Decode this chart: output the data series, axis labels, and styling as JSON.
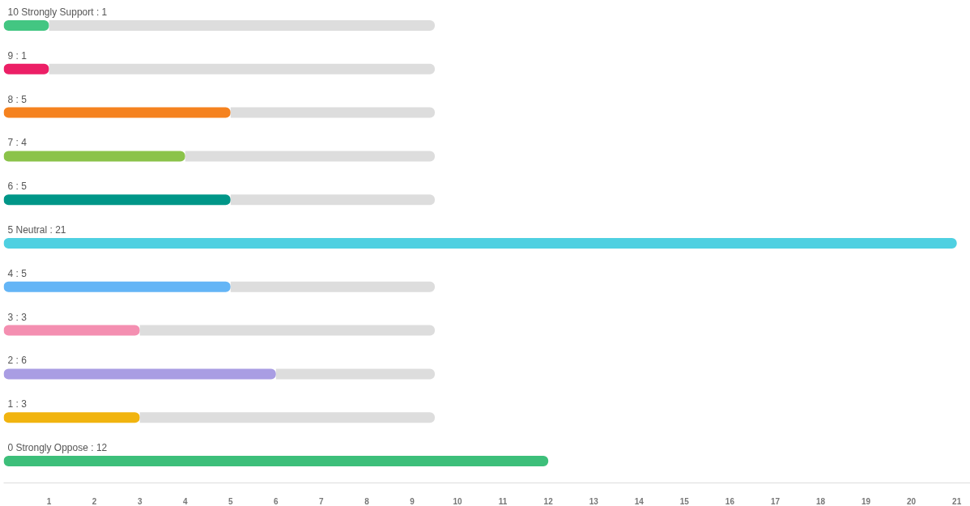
{
  "chart_data": {
    "type": "bar",
    "orientation": "horizontal",
    "stacked": true,
    "categories": [
      "10 Strongly Support : 1",
      "9 : 1",
      "8 : 5",
      "7 : 4",
      "6 : 5",
      "5 Neutral : 21",
      "4 : 5",
      "3 : 3",
      "2 : 6",
      "1 : 3",
      "0 Strongly Oppose : 12"
    ],
    "series": [
      {
        "colors": [
          "#43c682",
          "#ec1f66",
          "#f5821f",
          "#8bc34a",
          "#009688",
          "#4fd0e1",
          "#64b5f6",
          "#f48fb1",
          "#a99de3",
          "#f1b40f",
          "#3dbf7a"
        ],
        "values": [
          1,
          1,
          5,
          4,
          5,
          21,
          5,
          3,
          6,
          3,
          12
        ]
      },
      {
        "color": "#dddddd",
        "values": [
          8.5,
          8.5,
          4.5,
          5.5,
          4.5,
          null,
          4.5,
          6.5,
          3.5,
          6.5,
          null
        ]
      }
    ],
    "xlim": [
      0,
      21.3
    ],
    "xticks": [
      1,
      2,
      3,
      4,
      5,
      6,
      7,
      8,
      9,
      10,
      11,
      12,
      13,
      14,
      15,
      16,
      17,
      18,
      19,
      20,
      21
    ],
    "grid": false
  }
}
